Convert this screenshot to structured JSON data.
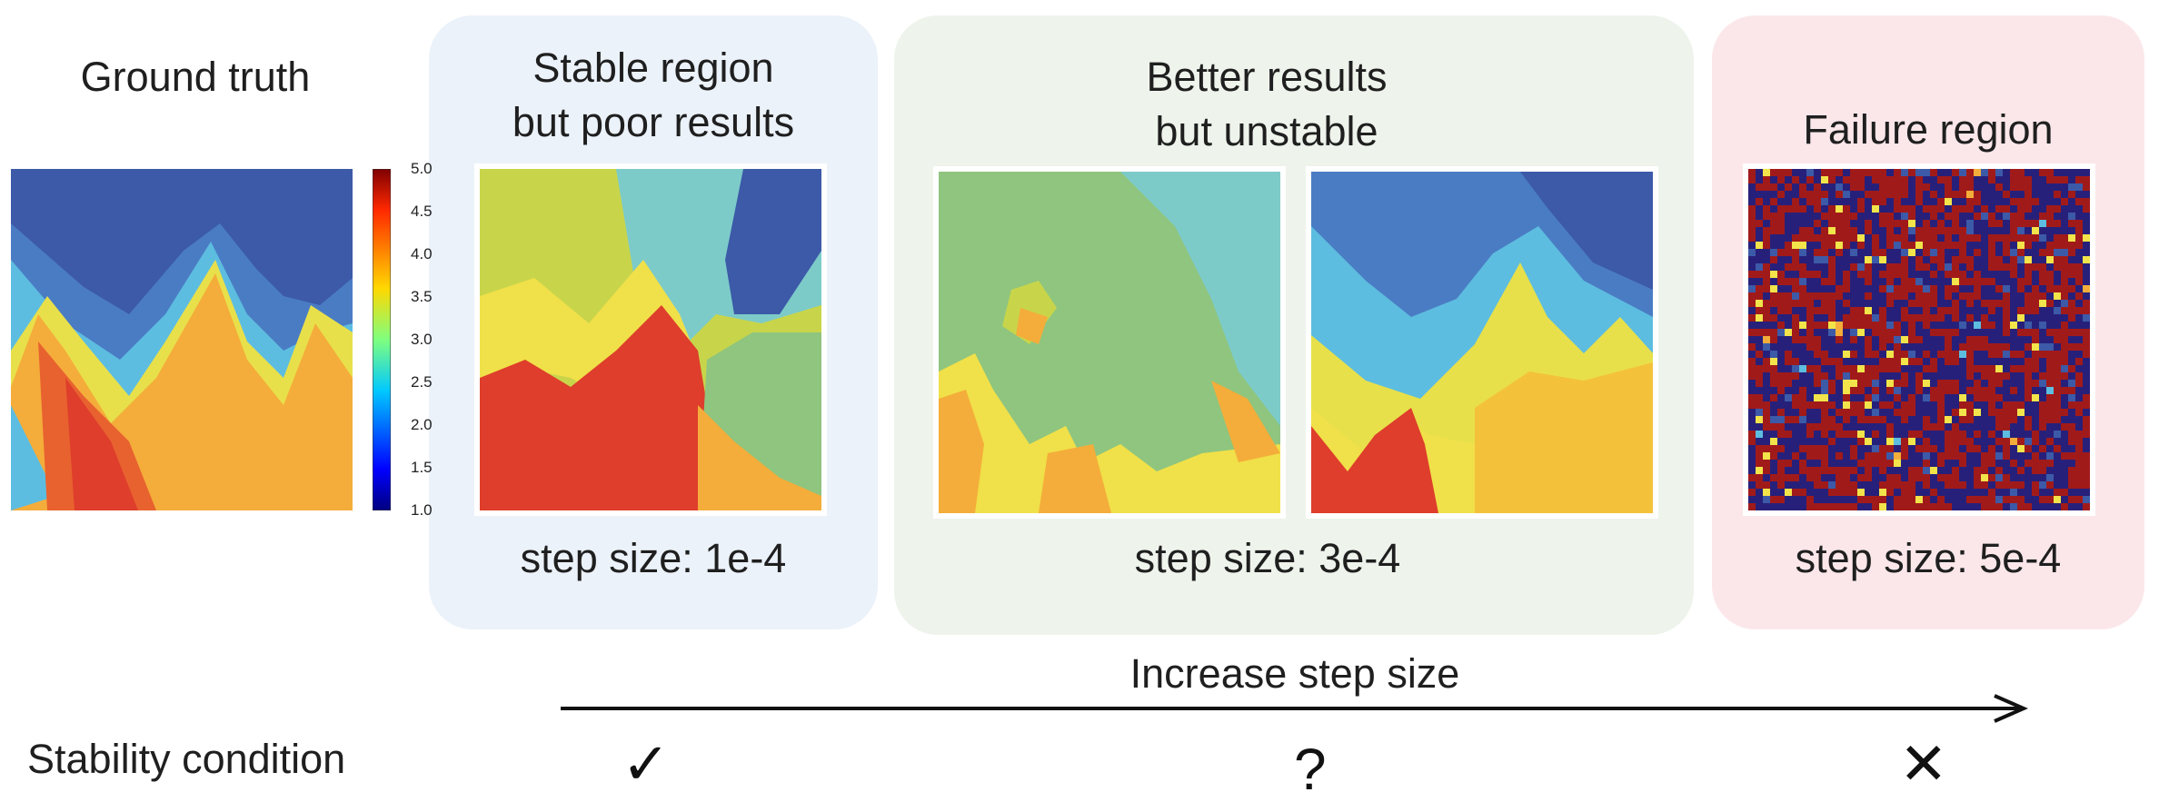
{
  "ground_truth": {
    "title": "Ground truth"
  },
  "colorbar": {
    "ticks": [
      "5.0",
      "4.5",
      "4.0",
      "3.5",
      "3.0",
      "2.5",
      "2.0",
      "1.5",
      "1.0"
    ],
    "range": [
      1.0,
      5.0
    ],
    "colormap": "jet"
  },
  "panels": [
    {
      "title_line1": "Stable region",
      "title_line2": "but poor results",
      "caption": "step size: 1e-4",
      "background": "#ebf2f9"
    },
    {
      "title_line1": "Better results",
      "title_line2": "but unstable",
      "caption": "step size: 3e-4",
      "background": "#eef4ec"
    },
    {
      "title_line1": "Failure region",
      "caption": "step size: 5e-4",
      "background": "#fbe7ea"
    }
  ],
  "axis": {
    "label": "Increase step size"
  },
  "stability": {
    "label": "Stability condition",
    "stable_mark": "✓",
    "uncertain_mark": "?",
    "failure_mark": "✕"
  },
  "colors": {
    "deep_blue": "#3c5aa8",
    "light_blue": "#5dbde0",
    "green": "#8fc57e",
    "yellow": "#f2e44a",
    "orange": "#f4ad3a",
    "red": "#de3e2b",
    "dark_red": "#a11a1a",
    "dark_navy": "#27207a"
  }
}
